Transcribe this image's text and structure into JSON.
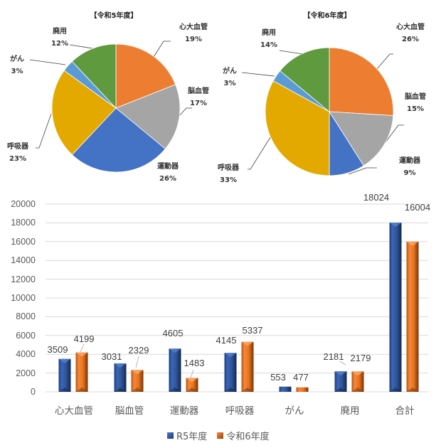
{
  "colors": {
    "cardio": "#ED7D31",
    "brain": "#A5A5A5",
    "motor": "#4472C4",
    "respiratory": "#E3A900",
    "cancer": "#5B9BD5",
    "disuse": "#5F9A3E",
    "bar_r5": "#2F5597",
    "bar_r6": "#E8731E",
    "grid": "#D9D9D9"
  },
  "chart_data": [
    {
      "type": "pie",
      "title": "【令和5年度】",
      "categories": [
        "心大血管",
        "脳血管",
        "運動器",
        "呼吸器",
        "がん",
        "廃用"
      ],
      "values": [
        19,
        17,
        26,
        23,
        3,
        12
      ],
      "labels": [
        "19%",
        "17%",
        "26%",
        "23%",
        "3%",
        "12%"
      ],
      "unit": "%"
    },
    {
      "type": "pie",
      "title": "【令和6年度】",
      "categories": [
        "心大血管",
        "脳血管",
        "運動器",
        "呼吸器",
        "がん",
        "廃用"
      ],
      "values": [
        26,
        15,
        9,
        33,
        3,
        14
      ],
      "labels": [
        "26%",
        "15%",
        "9%",
        "33%",
        "3%",
        "14%"
      ],
      "unit": "%"
    },
    {
      "type": "bar",
      "title": "",
      "categories": [
        "心大血管",
        "脳血管",
        "運動器",
        "呼吸器",
        "がん",
        "廃用",
        "合計"
      ],
      "series": [
        {
          "name": "R5年度",
          "values": [
            3509,
            3031,
            4605,
            4145,
            553,
            2181,
            18024
          ]
        },
        {
          "name": "令和6年度",
          "values": [
            4199,
            2329,
            1483,
            5337,
            477,
            2179,
            16004
          ]
        }
      ],
      "xlabel": "",
      "ylabel": "",
      "ylim": [
        0,
        20000
      ],
      "yticks": [
        "0",
        "2000",
        "4000",
        "6000",
        "8000",
        "10000",
        "12000",
        "14000",
        "16000",
        "18000",
        "20000"
      ],
      "grid": true,
      "legend_position": "bottom"
    }
  ],
  "pie1": {
    "title": "【令和5年度】",
    "labels": [
      {
        "name": "心大血管",
        "pct": "19%"
      },
      {
        "name": "脳血管",
        "pct": "17%"
      },
      {
        "name": "運動器",
        "pct": "26%"
      },
      {
        "name": "呼吸器",
        "pct": "23%"
      },
      {
        "name": "がん",
        "pct": "3%"
      },
      {
        "name": "廃用",
        "pct": "12%"
      }
    ]
  },
  "pie2": {
    "title": "【令和6年度】",
    "labels": [
      {
        "name": "心大血管",
        "pct": "26%"
      },
      {
        "name": "脳血管",
        "pct": "15%"
      },
      {
        "name": "運動器",
        "pct": "9%"
      },
      {
        "name": "呼吸器",
        "pct": "33%"
      },
      {
        "name": "がん",
        "pct": "3%"
      },
      {
        "name": "廃用",
        "pct": "14%"
      }
    ]
  },
  "bar": {
    "yticks": [
      "20000",
      "18000",
      "16000",
      "14000",
      "12000",
      "10000",
      "8000",
      "6000",
      "4000",
      "2000",
      "0"
    ],
    "categories": [
      "心大血管",
      "脳血管",
      "運動器",
      "呼吸器",
      "がん",
      "廃用",
      "合計"
    ],
    "r5": [
      "3509",
      "3031",
      "4605",
      "4145",
      "553",
      "2181",
      "18024"
    ],
    "r6": [
      "4199",
      "2329",
      "1483",
      "5337",
      "477",
      "2179",
      "16004"
    ],
    "legend": {
      "r5": "R5年度",
      "r6": "令和6年度"
    }
  }
}
